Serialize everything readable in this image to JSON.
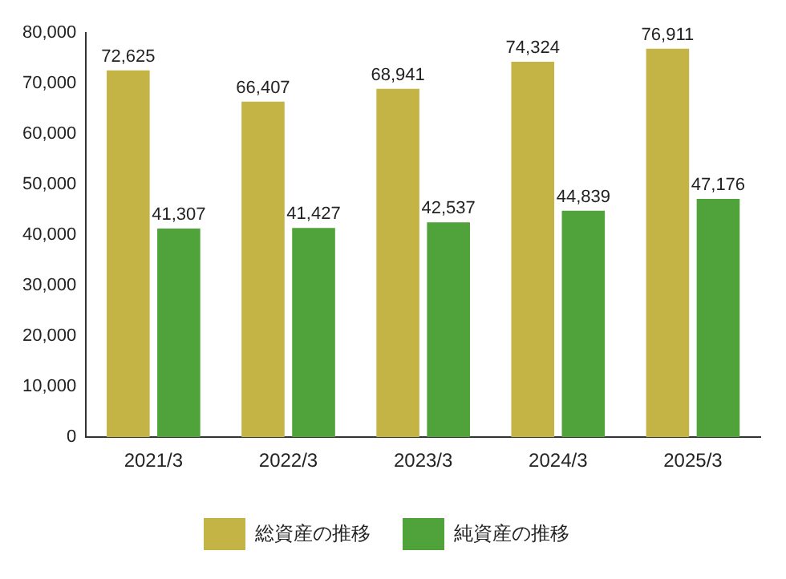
{
  "chart_data": {
    "type": "bar",
    "categories": [
      "2021/3",
      "2022/3",
      "2023/3",
      "2024/3",
      "2025/3"
    ],
    "series": [
      {
        "name": "総資産の推移",
        "color": "#c4b445",
        "values": [
          72625,
          66407,
          68941,
          74324,
          76911
        ],
        "value_labels": [
          "72,625",
          "66,407",
          "68,941",
          "74,324",
          "76,911"
        ]
      },
      {
        "name": "純資産の推移",
        "color": "#4fa33a",
        "values": [
          41307,
          41427,
          42537,
          44839,
          47176
        ],
        "value_labels": [
          "41,307",
          "41,427",
          "42,537",
          "44,839",
          "47,176"
        ]
      }
    ],
    "ylim": [
      0,
      80000
    ],
    "yticks": [
      0,
      {
        "value": 10000,
        "label": "10,000"
      },
      {
        "value": 20000,
        "label": "20,000"
      },
      {
        "value": 30000,
        "label": "30,000"
      },
      {
        "value": 40000,
        "label": "40,000"
      },
      {
        "value": 50000,
        "label": "50,000"
      },
      {
        "value": 60000,
        "label": "60,000"
      },
      {
        "value": 70000,
        "label": "70,000"
      },
      {
        "value": 80000,
        "label": "80,000"
      }
    ],
    "grid": false,
    "legend": "bottom"
  }
}
